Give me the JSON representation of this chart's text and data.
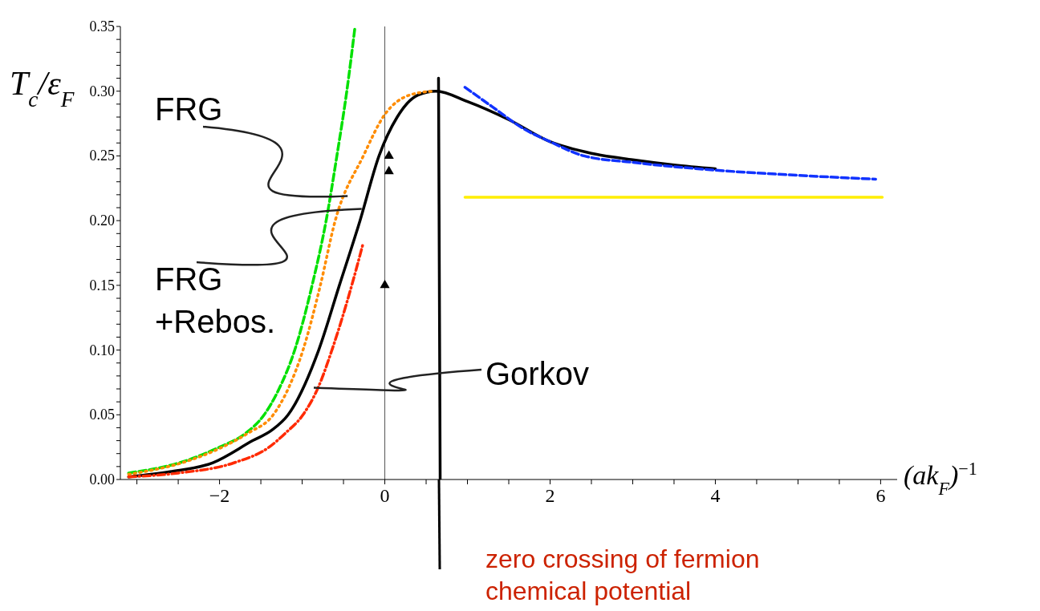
{
  "chart_data": {
    "type": "line",
    "ylabel": "T$_{c}$/ε$_{F}$",
    "xlabel": "(ak$_{F}$)$^{−1}$",
    "xlim": [
      -3.2,
      6.2
    ],
    "ylim": [
      0,
      0.35
    ],
    "xticks": [
      {
        "value": -3,
        "label": null
      },
      {
        "value": -2.5,
        "label": null
      },
      {
        "value": -2,
        "label": "−2"
      },
      {
        "value": -1.5,
        "label": null
      },
      {
        "value": -1,
        "label": null
      },
      {
        "value": -0.5,
        "label": null
      },
      0,
      {
        "value": 0.5,
        "label": null
      },
      {
        "value": 1,
        "label": null
      },
      {
        "value": 1.5,
        "label": null
      },
      2,
      {
        "value": 2.5,
        "label": null
      },
      {
        "value": 3,
        "label": null
      },
      {
        "value": 3.5,
        "label": null
      },
      4,
      {
        "value": 4.5,
        "label": null
      },
      {
        "value": 5,
        "label": null
      },
      {
        "value": 5.5,
        "label": null
      },
      6
    ],
    "yticks": [
      {
        "value": 0,
        "label": "0.00"
      },
      {
        "value": 0.01,
        "label": null
      },
      {
        "value": 0.02,
        "label": null
      },
      {
        "value": 0.03,
        "label": null
      },
      {
        "value": 0.04,
        "label": null
      },
      {
        "value": 0.05,
        "label": "0.05"
      },
      {
        "value": 0.06,
        "label": null
      },
      {
        "value": 0.07,
        "label": null
      },
      {
        "value": 0.08,
        "label": null
      },
      {
        "value": 0.09,
        "label": null
      },
      {
        "value": 0.1,
        "label": "0.10"
      },
      {
        "value": 0.11,
        "label": null
      },
      {
        "value": 0.12,
        "label": null
      },
      {
        "value": 0.13,
        "label": null
      },
      {
        "value": 0.14,
        "label": null
      },
      {
        "value": 0.15,
        "label": "0.15"
      },
      {
        "value": 0.16,
        "label": null
      },
      {
        "value": 0.17,
        "label": null
      },
      {
        "value": 0.18,
        "label": null
      },
      {
        "value": 0.19,
        "label": null
      },
      {
        "value": 0.2,
        "label": "0.20"
      },
      {
        "value": 0.21,
        "label": null
      },
      {
        "value": 0.22,
        "label": null
      },
      {
        "value": 0.23,
        "label": null
      },
      {
        "value": 0.24,
        "label": null
      },
      {
        "value": 0.25,
        "label": "0.25"
      },
      {
        "value": 0.26,
        "label": null
      },
      {
        "value": 0.27,
        "label": null
      },
      {
        "value": 0.28,
        "label": null
      },
      {
        "value": 0.29,
        "label": null
      },
      {
        "value": 0.3,
        "label": "0.30"
      },
      {
        "value": 0.31,
        "label": null
      },
      {
        "value": 0.32,
        "label": null
      },
      {
        "value": 0.33,
        "label": null
      },
      {
        "value": 0.34,
        "label": null
      },
      {
        "value": 0.35,
        "label": "0.35"
      }
    ],
    "ref_lines": [
      {
        "axis": "x",
        "value": 0,
        "color": "#555555"
      }
    ],
    "series": [
      {
        "color": "#000000",
        "line_style": "solid",
        "x": [
          -3.1,
          -2.6,
          -2.08,
          -1.6,
          -1.37,
          -1.17,
          -0.8,
          -0.55,
          -0.3,
          -0.07,
          0.15,
          0.4,
          0.62,
          1.0,
          1.5,
          2.0,
          2.5,
          3.0,
          3.5,
          4.0
        ],
        "values": [
          0.002,
          0.006,
          0.013,
          0.03,
          0.038,
          0.05,
          0.1,
          0.15,
          0.2,
          0.25,
          0.28,
          0.297,
          0.3,
          0.292,
          0.278,
          0.261,
          0.252,
          0.247,
          0.243,
          0.24
        ]
      },
      {
        "color": "#00e000",
        "line_style": "dashed",
        "x": [
          -3.1,
          -2.48,
          -2.0,
          -1.7,
          -1.46,
          -1.28,
          -1.09,
          -0.88,
          -0.71,
          -0.58,
          -0.46,
          -0.36
        ],
        "values": [
          0.005,
          0.013,
          0.025,
          0.035,
          0.05,
          0.07,
          0.1,
          0.15,
          0.2,
          0.25,
          0.3,
          0.35
        ]
      },
      {
        "color": "#ff8c00",
        "line_style": "dotted",
        "x": [
          -3.1,
          -2.45,
          -2.0,
          -1.65,
          -1.35,
          -1.17,
          -0.99,
          -0.78,
          -0.6,
          -0.26,
          0,
          0.3,
          0.58
        ],
        "values": [
          0.004,
          0.013,
          0.024,
          0.036,
          0.05,
          0.07,
          0.1,
          0.15,
          0.2,
          0.25,
          0.282,
          0.297,
          0.3
        ]
      },
      {
        "color": "#ff2a00",
        "line_style": "dashdot",
        "x": [
          -3.1,
          -2.5,
          -1.82,
          -1.4,
          -1.2,
          -0.99,
          -0.8,
          -0.64,
          -0.4,
          -0.26
        ],
        "values": [
          0.002,
          0.005,
          0.013,
          0.025,
          0.036,
          0.05,
          0.072,
          0.1,
          0.15,
          0.183
        ]
      },
      {
        "color": "#1133ff",
        "line_style": "dashed",
        "x": [
          0.97,
          1.3,
          1.68,
          2.0,
          2.41,
          3.0,
          4.0,
          5.0,
          5.94
        ],
        "values": [
          0.303,
          0.288,
          0.271,
          0.261,
          0.25,
          0.245,
          0.239,
          0.235,
          0.232
        ]
      },
      {
        "color": "#ffee00",
        "line_style": "solid",
        "x": [
          0.97,
          6.02
        ],
        "values": [
          0.218,
          0.218
        ]
      },
      {
        "color": "#000000",
        "line_style": "solid",
        "x": [
          0.65,
          0.67
        ],
        "values": [
          0.31,
          0
        ]
      },
      {
        "type": "scatter",
        "color": "#000000",
        "marker": "triangle",
        "x": [
          0.05,
          0.05,
          0
        ],
        "values": [
          0.25,
          0.238,
          0.15
        ]
      }
    ],
    "annotations": [
      {
        "text": "FRG",
        "x": -0.45,
        "y": 0.219
      },
      {
        "text": "FRG\n+Rebos.",
        "x": -0.28,
        "y": 0.209
      },
      {
        "text": "Gorkov",
        "x": -0.86,
        "y": 0.071
      },
      "zero crossing of fermion\nchemical potential"
    ]
  }
}
